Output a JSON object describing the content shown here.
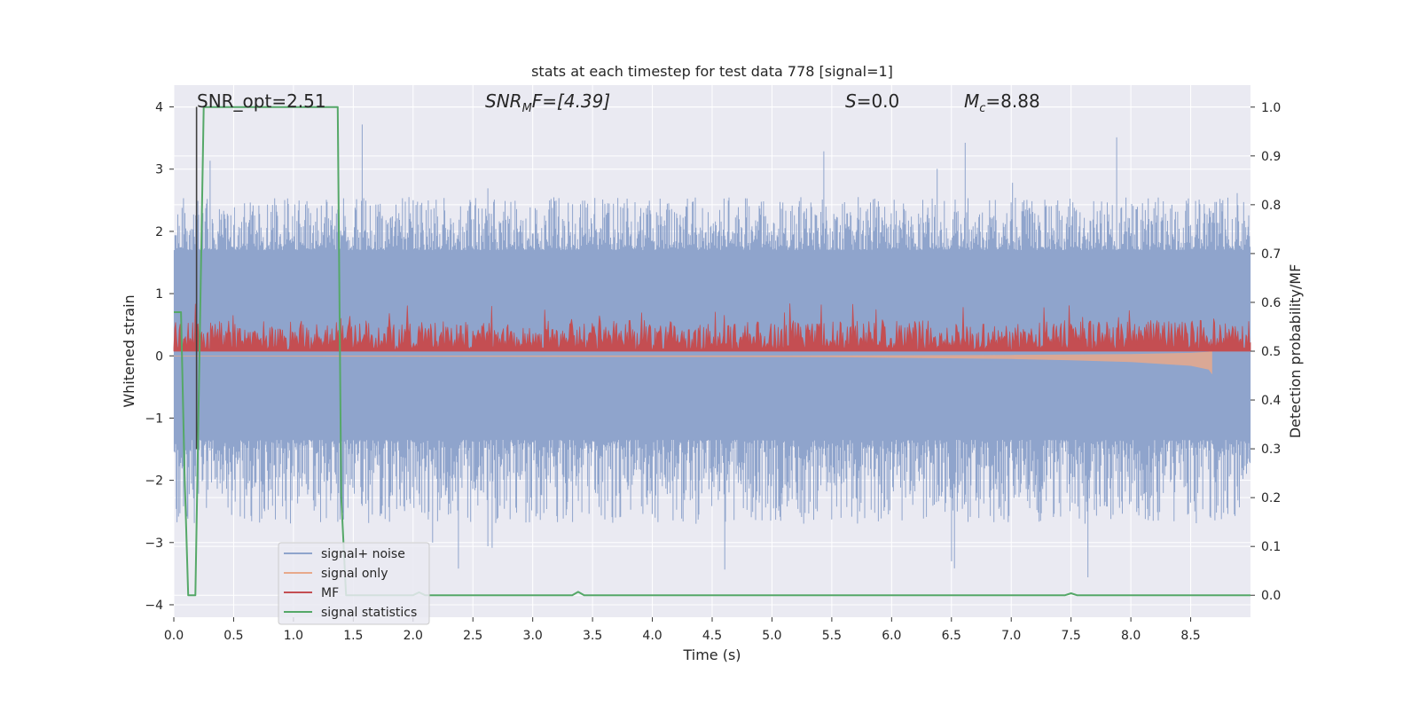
{
  "chart_data": {
    "type": "line",
    "title": "stats at each timestep for test data 778 [signal=1]",
    "xlabel": "Time (s)",
    "ylabel": "Whitened strain",
    "y2label": "Detection probability/MF",
    "xlim": [
      0.0,
      9.0
    ],
    "ylim": [
      -4.2,
      4.35
    ],
    "y2lim": [
      -0.045,
      1.045
    ],
    "xticks": [
      "0.0",
      "0.5",
      "1.0",
      "1.5",
      "2.0",
      "2.5",
      "3.0",
      "3.5",
      "4.0",
      "4.5",
      "5.0",
      "5.5",
      "6.0",
      "6.5",
      "7.0",
      "7.5",
      "8.0",
      "8.5"
    ],
    "yticks": [
      "−4",
      "−3",
      "−2",
      "−1",
      "0",
      "1",
      "2",
      "3",
      "4"
    ],
    "y2ticks": [
      "0.0",
      "0.1",
      "0.2",
      "0.3",
      "0.4",
      "0.5",
      "0.6",
      "0.7",
      "0.8",
      "0.9",
      "1.0"
    ],
    "grid": true,
    "legend_position": "lower-left",
    "annotations": {
      "snr_opt": "SNR_opt=2.51",
      "snr_mf_label": "SNR",
      "snr_mf_sub": "M",
      "snr_mf_value": "F=[4.39]",
      "s_label": "S",
      "s_value": "=0.0",
      "mc_label": "M",
      "mc_sub": "c",
      "mc_value": "=8.88"
    },
    "series": [
      {
        "name": "signal+ noise",
        "color": "#8fa4cc",
        "axis": "left",
        "style": "dense noise band",
        "envelope": {
          "core_range": [
            -1.35,
            1.7
          ],
          "typical_peak": 2.2,
          "typical_trough": -2.1,
          "max": 3.95,
          "min": -3.7
        }
      },
      {
        "name": "signal only",
        "color": "#e8a98b",
        "axis": "left",
        "style": "chirp",
        "x": [
          0.0,
          5.5,
          7.0,
          7.5,
          8.0,
          8.5,
          8.65,
          8.68
        ],
        "amplitude": [
          0.01,
          0.02,
          0.05,
          0.07,
          0.1,
          0.16,
          0.22,
          0.3
        ]
      },
      {
        "name": "MF",
        "color": "#c44e52",
        "axis": "right",
        "style": "noise band",
        "envelope": {
          "baseline": 0.5,
          "typical_peak": 0.56,
          "max": 0.6,
          "min": 0.495
        }
      },
      {
        "name": "signal statistics",
        "color": "#55a868",
        "axis": "right",
        "x": [
          0.0,
          0.06,
          0.09,
          0.12,
          0.18,
          0.25,
          1.37,
          1.4,
          1.44,
          2.0,
          2.05,
          2.1,
          3.33,
          3.38,
          3.43,
          7.45,
          7.5,
          7.55,
          9.0
        ],
        "y": [
          0.58,
          0.58,
          0.25,
          0.0,
          0.0,
          1.0,
          1.0,
          0.2,
          0.0,
          0.0,
          0.006,
          0.0,
          0.0,
          0.007,
          0.0,
          0.0,
          0.004,
          0.0,
          0.0
        ]
      }
    ],
    "marker_line": {
      "x": 0.19,
      "y_top": 4.0,
      "y_bottom": -1.5,
      "color": "#404040"
    }
  }
}
